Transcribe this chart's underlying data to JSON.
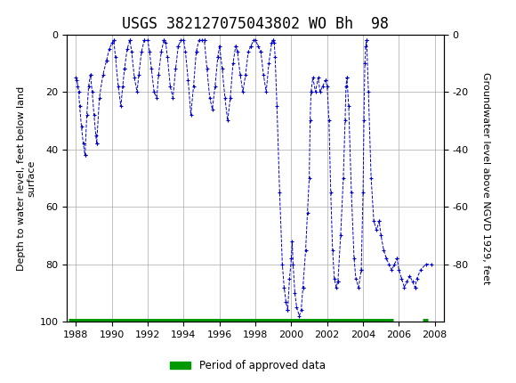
{
  "title": "USGS 382127075043802 WO Bh  98",
  "ylabel_left": "Depth to water level, feet below land\nsurface",
  "ylabel_right": "Groundwater level above NGVD 1929, feet",
  "ylim": [
    100,
    0
  ],
  "xlim": [
    1987.5,
    2008.5
  ],
  "xticks": [
    1988,
    1990,
    1992,
    1994,
    1996,
    1998,
    2000,
    2002,
    2004,
    2006,
    2008
  ],
  "yticks_left": [
    0,
    20,
    40,
    60,
    80,
    100
  ],
  "yticks_right": [
    0,
    -20,
    -40,
    -60,
    -80
  ],
  "header_color": "#1a6b3c",
  "line_color": "#0000cc",
  "approved_color": "#009900",
  "background_color": "#ffffff",
  "grid_color": "#aaaaaa",
  "title_fontsize": 12,
  "axis_label_fontsize": 8,
  "tick_fontsize": 8,
  "legend_label": "Period of approved data",
  "approved_bar_start": 1987.6,
  "approved_bar_end1": 2005.7,
  "approved_bar_start2": 2007.3,
  "approved_bar_end2": 2007.6
}
